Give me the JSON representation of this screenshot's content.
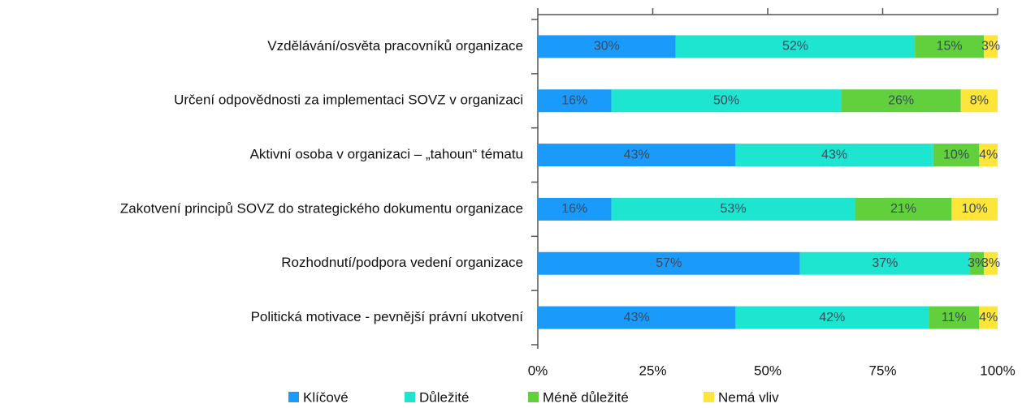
{
  "chart_data": {
    "type": "stacked-bar-horizontal",
    "categories": [
      "Vzdělávání/osvěta pracovníků organizace",
      "Určení odpovědnosti za implementaci SOVZ v organizaci",
      "Aktivní osoba v organizaci – „tahoun“ tématu",
      "Zakotvení principů SOVZ do strategického dokumentu organizace",
      "Rozhodnutí/podpora vedení organizace",
      "Politická motivace - pevnější právní ukotvení"
    ],
    "series": [
      {
        "name": "Klíčové",
        "color": "#1a9bfc",
        "values": [
          30,
          16,
          43,
          16,
          57,
          43
        ],
        "value_labels": [
          "30%",
          "16%",
          "43%",
          "16%",
          "57%",
          "43%"
        ]
      },
      {
        "name": "Důležité",
        "color": "#1de5d0",
        "values": [
          52,
          50,
          43,
          53,
          37,
          42
        ],
        "value_labels": [
          "52%",
          "50%",
          "43%",
          "53%",
          "37%",
          "42%"
        ]
      },
      {
        "name": "Méně důležité",
        "color": "#62d03c",
        "values": [
          15,
          26,
          10,
          21,
          3,
          11
        ],
        "value_labels": [
          "15%",
          "26%",
          "10%",
          "21%",
          "3%",
          "11%"
        ]
      },
      {
        "name": "Nemá vliv",
        "color": "#fde53a",
        "values": [
          3,
          8,
          4,
          10,
          3,
          4
        ],
        "value_labels": [
          "3%",
          "8%",
          "4%",
          "10%",
          "3%",
          "4%"
        ]
      }
    ],
    "xlim": [
      0,
      100
    ],
    "xticks": [
      {
        "value": 0,
        "label": "0%"
      },
      {
        "value": 25,
        "label": "25%"
      },
      {
        "value": 50,
        "label": "50%"
      },
      {
        "value": 75,
        "label": "75%"
      },
      {
        "value": 100,
        "label": "100%"
      }
    ]
  }
}
